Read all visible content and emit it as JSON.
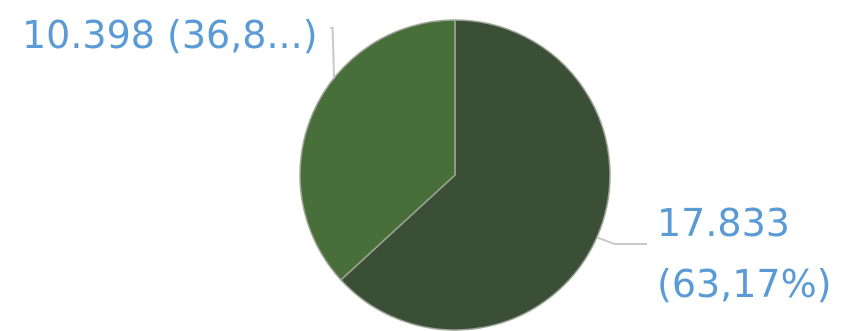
{
  "chart_data": {
    "type": "pie",
    "title": "",
    "slices": [
      {
        "value": 17833,
        "percent": 63.17,
        "label_lines": [
          "17.833",
          "(63,17%)"
        ],
        "color": "#3a4f35"
      },
      {
        "value": 10398,
        "percent": 36.83,
        "label_lines": [
          "10.398 (36,8...)"
        ],
        "color": "#486f39"
      }
    ],
    "start_angle_deg": 0,
    "direction": "clockwise",
    "label_color": "#5b9bd5",
    "leader_color": "#c9c9c9",
    "slice_border_color": "#a0a59a"
  }
}
